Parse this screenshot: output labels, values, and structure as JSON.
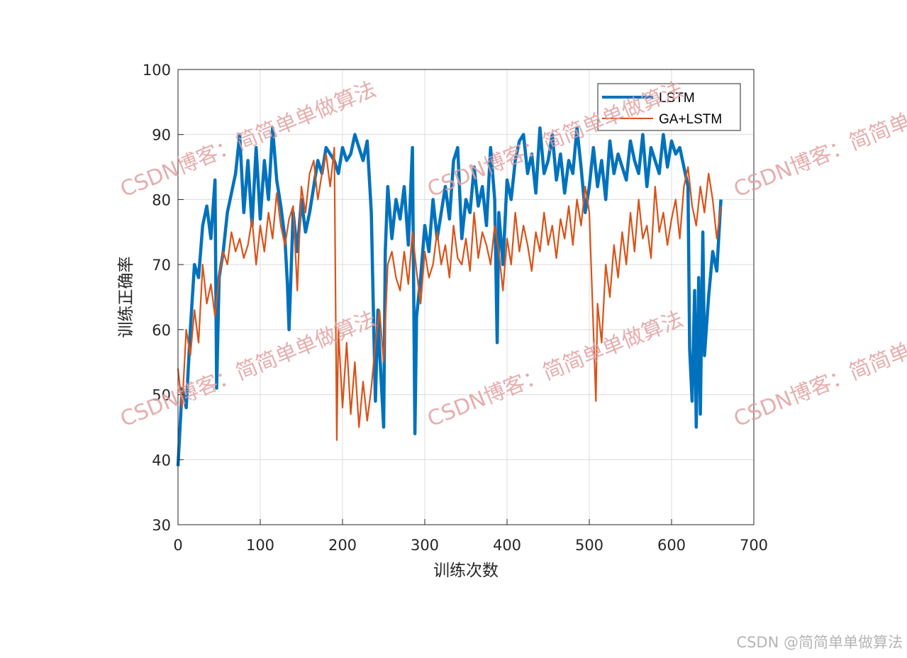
{
  "chart_data": {
    "type": "line",
    "xlabel": "训练次数",
    "ylabel": "训练正确率",
    "xlim": [
      0,
      700
    ],
    "ylim": [
      30,
      100
    ],
    "xticks": [
      0,
      100,
      200,
      300,
      400,
      500,
      600,
      700
    ],
    "yticks": [
      30,
      40,
      50,
      60,
      70,
      80,
      90,
      100
    ],
    "grid": true,
    "legend_position": "top-right",
    "series": [
      {
        "name": "LSTM",
        "color": "#0072BD",
        "x": [
          0,
          5,
          10,
          15,
          20,
          25,
          30,
          35,
          40,
          45,
          47,
          50,
          55,
          60,
          65,
          70,
          75,
          80,
          85,
          90,
          95,
          100,
          105,
          110,
          115,
          120,
          125,
          130,
          133,
          135,
          140,
          145,
          150,
          155,
          160,
          165,
          170,
          175,
          180,
          185,
          190,
          195,
          200,
          205,
          210,
          215,
          220,
          225,
          230,
          235,
          238,
          240,
          243,
          245,
          250,
          252,
          255,
          260,
          265,
          270,
          275,
          280,
          285,
          288,
          290,
          295,
          300,
          305,
          310,
          315,
          320,
          325,
          330,
          335,
          340,
          345,
          350,
          355,
          360,
          365,
          370,
          375,
          380,
          385,
          388,
          390,
          395,
          400,
          405,
          410,
          415,
          420,
          425,
          430,
          435,
          440,
          445,
          450,
          455,
          460,
          465,
          470,
          475,
          480,
          485,
          490,
          495,
          500,
          505,
          510,
          515,
          520,
          525,
          530,
          535,
          540,
          545,
          550,
          555,
          560,
          565,
          570,
          575,
          580,
          585,
          590,
          595,
          600,
          605,
          610,
          615,
          620,
          622,
          625,
          628,
          630,
          633,
          635,
          638,
          640,
          645,
          650,
          655,
          660
        ],
        "values": [
          39,
          51,
          48,
          60,
          70,
          68,
          76,
          79,
          74,
          83,
          51,
          68,
          72,
          78,
          81,
          84,
          90,
          78,
          86,
          76,
          88,
          77,
          86,
          80,
          91,
          83,
          79,
          74,
          67,
          60,
          78,
          72,
          80,
          75,
          78,
          82,
          86,
          84,
          88,
          87,
          86,
          84,
          88,
          86,
          87,
          90,
          88,
          86,
          89,
          78,
          60,
          49,
          63,
          57,
          45,
          72,
          82,
          74,
          80,
          77,
          82,
          73,
          88,
          44,
          62,
          68,
          76,
          72,
          80,
          74,
          78,
          82,
          77,
          86,
          88,
          74,
          80,
          78,
          85,
          79,
          82,
          76,
          88,
          80,
          58,
          78,
          70,
          83,
          80,
          86,
          89,
          90,
          84,
          87,
          81,
          91,
          84,
          86,
          90,
          83,
          87,
          81,
          86,
          84,
          91,
          85,
          78,
          82,
          88,
          82,
          86,
          80,
          89,
          84,
          87,
          85,
          83,
          89,
          86,
          84,
          90,
          82,
          88,
          86,
          84,
          90,
          85,
          89,
          87,
          88,
          85,
          82,
          57,
          49,
          66,
          45,
          68,
          47,
          75,
          56,
          65,
          72,
          69,
          80
        ]
      },
      {
        "name": "GA+LSTM",
        "color": "#D95319",
        "x": [
          0,
          5,
          10,
          15,
          20,
          25,
          30,
          35,
          40,
          45,
          50,
          55,
          60,
          65,
          70,
          75,
          80,
          85,
          90,
          95,
          100,
          105,
          110,
          115,
          120,
          125,
          130,
          135,
          140,
          145,
          150,
          155,
          160,
          165,
          170,
          175,
          180,
          185,
          190,
          193,
          195,
          200,
          205,
          210,
          215,
          220,
          225,
          230,
          235,
          240,
          245,
          250,
          255,
          260,
          265,
          270,
          275,
          280,
          285,
          290,
          295,
          300,
          305,
          310,
          315,
          320,
          325,
          330,
          335,
          340,
          345,
          350,
          355,
          360,
          365,
          370,
          375,
          380,
          385,
          390,
          395,
          400,
          405,
          410,
          415,
          420,
          425,
          430,
          435,
          440,
          445,
          450,
          455,
          460,
          465,
          470,
          475,
          480,
          485,
          490,
          495,
          500,
          505,
          508,
          510,
          515,
          520,
          525,
          530,
          535,
          540,
          545,
          550,
          555,
          560,
          565,
          570,
          575,
          580,
          585,
          590,
          595,
          600,
          605,
          610,
          615,
          620,
          625,
          630,
          635,
          640,
          645,
          650,
          655,
          660
        ],
        "values": [
          54,
          48,
          60,
          56,
          63,
          58,
          70,
          64,
          67,
          62,
          68,
          72,
          70,
          75,
          72,
          74,
          71,
          73,
          77,
          70,
          76,
          72,
          78,
          74,
          81,
          76,
          73,
          77,
          79,
          66,
          82,
          78,
          84,
          86,
          80,
          84,
          87,
          82,
          88,
          43,
          60,
          48,
          58,
          47,
          55,
          45,
          52,
          46,
          51,
          58,
          63,
          55,
          70,
          72,
          68,
          66,
          72,
          67,
          75,
          69,
          64,
          72,
          68,
          70,
          75,
          70,
          73,
          68,
          76,
          71,
          70,
          74,
          69,
          78,
          71,
          75,
          73,
          70,
          76,
          72,
          66,
          74,
          70,
          78,
          72,
          76,
          73,
          69,
          75,
          72,
          78,
          73,
          76,
          71,
          77,
          74,
          79,
          73,
          80,
          76,
          82,
          78,
          60,
          49,
          64,
          58,
          70,
          65,
          73,
          68,
          75,
          70,
          78,
          72,
          80,
          74,
          76,
          71,
          82,
          75,
          78,
          73,
          77,
          80,
          74,
          82,
          85,
          79,
          76,
          82,
          78,
          84,
          80,
          74,
          79
        ]
      }
    ]
  },
  "watermark": {
    "text": "CSDN博客：简简单单做算法",
    "corner": "CSDN @简简单单做算法"
  }
}
